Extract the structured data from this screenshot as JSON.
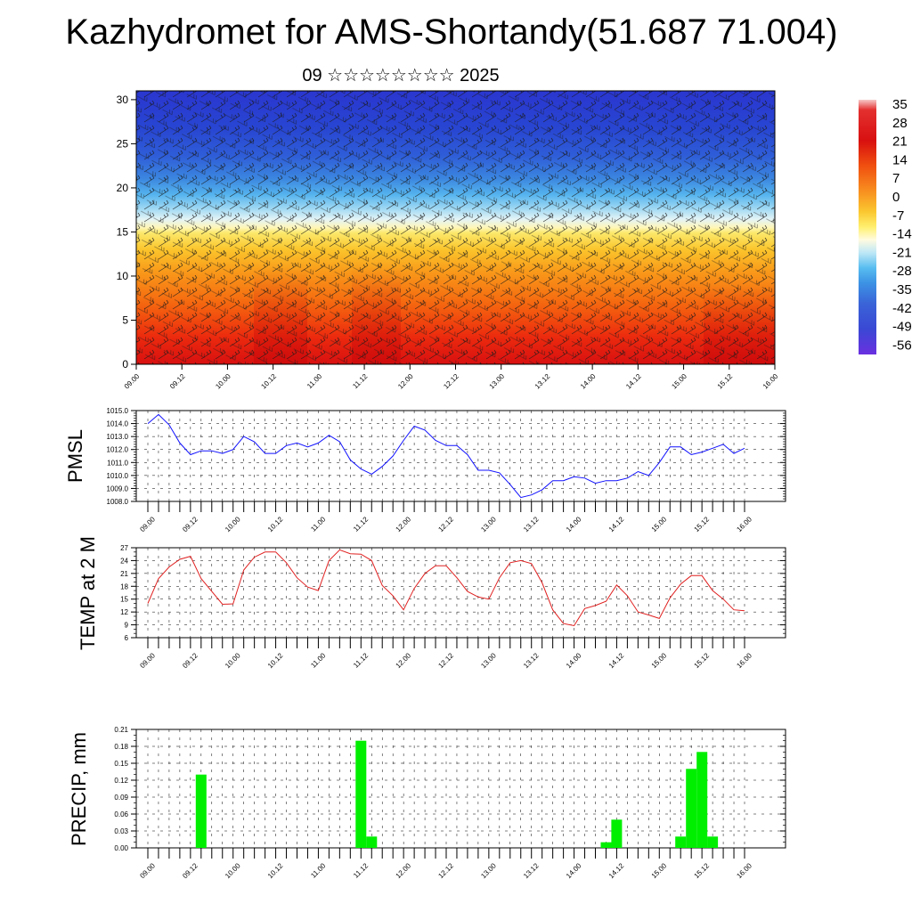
{
  "title": "Kazhydromet for AMS-Shortandy(51.687 71.004)",
  "subtitle": "09 ☆☆☆☆☆☆☆☆ 2025",
  "colors": {
    "pmsl_line": "#1010ff",
    "temp_line": "#e02020",
    "precip_bar": "#00ee00"
  },
  "chart_data": [
    {
      "type": "heatmap",
      "title": "",
      "ylim": [
        0,
        31
      ],
      "yticks": [
        "0",
        "5",
        "10",
        "15",
        "20",
        "25",
        "30"
      ],
      "xticks": [
        "09.00",
        "09.12",
        "10.00",
        "10.12",
        "11.00",
        "11.12",
        "12.00",
        "12.12",
        "13.00",
        "13.12",
        "14.00",
        "14.12",
        "15.00",
        "15.12",
        "16.00"
      ],
      "colorbar": {
        "labels": [
          "35",
          "28",
          "21",
          "14",
          "7",
          "0",
          "-7",
          "-14",
          "-21",
          "-28",
          "-35",
          "-42",
          "-49",
          "-56"
        ],
        "range": [
          -56,
          35
        ]
      },
      "wind_barbs": true
    },
    {
      "type": "line",
      "ylabel": "PMSL",
      "ylim": [
        1008.0,
        1015.0
      ],
      "yticks": [
        "1008.0",
        "1009.0",
        "1010.0",
        "1011.0",
        "1012.0",
        "1013.0",
        "1014.0",
        "1015.0"
      ],
      "xticks": [
        "09.00",
        "09.12",
        "10.00",
        "10.12",
        "11.00",
        "11.12",
        "12.00",
        "12.12",
        "13.00",
        "13.12",
        "14.00",
        "14.12",
        "15.00",
        "15.12",
        "16.00"
      ],
      "x": [
        0,
        3,
        6,
        9,
        12,
        15,
        18,
        21,
        24,
        27,
        30,
        33,
        36,
        39,
        42,
        45,
        48,
        51,
        54,
        57,
        60,
        63,
        66,
        69,
        72,
        75,
        78,
        81,
        84,
        87,
        90,
        93,
        96,
        99,
        102,
        105,
        108,
        111,
        114,
        117,
        120,
        123,
        126,
        129,
        132,
        135,
        138,
        141,
        144,
        147,
        150,
        153,
        156,
        159,
        162,
        165,
        168
      ],
      "values": [
        1014.0,
        1014.7,
        1013.9,
        1012.5,
        1011.6,
        1011.9,
        1011.9,
        1011.7,
        1012.0,
        1013.0,
        1012.6,
        1011.7,
        1011.7,
        1012.3,
        1012.5,
        1012.2,
        1012.5,
        1013.1,
        1012.6,
        1011.2,
        1010.5,
        1010.1,
        1010.7,
        1011.5,
        1012.7,
        1013.8,
        1013.5,
        1012.7,
        1012.3,
        1012.3,
        1011.6,
        1010.4,
        1010.4,
        1010.2,
        1009.3,
        1008.3,
        1008.5,
        1008.9,
        1009.6,
        1009.6,
        1009.9,
        1009.8,
        1009.4,
        1009.6,
        1009.6,
        1009.8,
        1010.3,
        1010.0,
        1011.0,
        1012.2,
        1012.2,
        1011.6,
        1011.8,
        1012.1,
        1012.4,
        1011.7,
        1012.1
      ]
    },
    {
      "type": "line",
      "ylabel": "TEMP at 2 M",
      "ylim": [
        6,
        27
      ],
      "yticks": [
        "6",
        "9",
        "12",
        "15",
        "18",
        "21",
        "24",
        "27"
      ],
      "xticks": [
        "09.00",
        "09.12",
        "10.00",
        "10.12",
        "11.00",
        "11.12",
        "12.00",
        "12.12",
        "13.00",
        "13.12",
        "14.00",
        "14.12",
        "15.00",
        "15.12",
        "16.00"
      ],
      "x": [
        0,
        3,
        6,
        9,
        12,
        15,
        18,
        21,
        24,
        27,
        30,
        33,
        36,
        39,
        42,
        45,
        48,
        51,
        54,
        57,
        60,
        63,
        66,
        69,
        72,
        75,
        78,
        81,
        84,
        87,
        90,
        93,
        96,
        99,
        102,
        105,
        108,
        111,
        114,
        117,
        120,
        123,
        126,
        129,
        132,
        135,
        138,
        141,
        144,
        147,
        150,
        153,
        156,
        159,
        162,
        165,
        168
      ],
      "values": [
        14.0,
        19.8,
        22.5,
        24.3,
        25.0,
        19.8,
        16.8,
        13.8,
        13.9,
        21.8,
        24.8,
        26.0,
        26.0,
        23.5,
        20.0,
        17.8,
        17.0,
        24.0,
        26.5,
        25.6,
        25.5,
        24.0,
        18.2,
        15.8,
        12.5,
        17.5,
        21.0,
        22.8,
        22.8,
        20.0,
        16.8,
        15.5,
        15.0,
        20.0,
        23.5,
        24.0,
        23.3,
        18.8,
        12.5,
        9.3,
        8.8,
        12.8,
        13.5,
        14.5,
        18.3,
        15.8,
        12.0,
        11.3,
        10.5,
        15.3,
        18.5,
        20.5,
        20.5,
        17.0,
        15.0,
        12.5,
        12.3
      ]
    },
    {
      "type": "bar",
      "ylabel": "PRECIP, mm",
      "ylim": [
        0.0,
        0.21
      ],
      "yticks": [
        "0.00",
        "0.03",
        "0.06",
        "0.09",
        "0.12",
        "0.15",
        "0.18",
        "0.21"
      ],
      "xticks": [
        "09.00",
        "09.12",
        "10.00",
        "10.12",
        "11.00",
        "11.12",
        "12.00",
        "12.12",
        "13.00",
        "13.12",
        "14.00",
        "14.12",
        "15.00",
        "15.12",
        "16.00"
      ],
      "x": [
        15,
        60,
        63,
        129,
        132,
        150,
        153,
        156,
        159
      ],
      "values": [
        0.13,
        0.19,
        0.02,
        0.01,
        0.05,
        0.02,
        0.14,
        0.17,
        0.02
      ]
    }
  ]
}
